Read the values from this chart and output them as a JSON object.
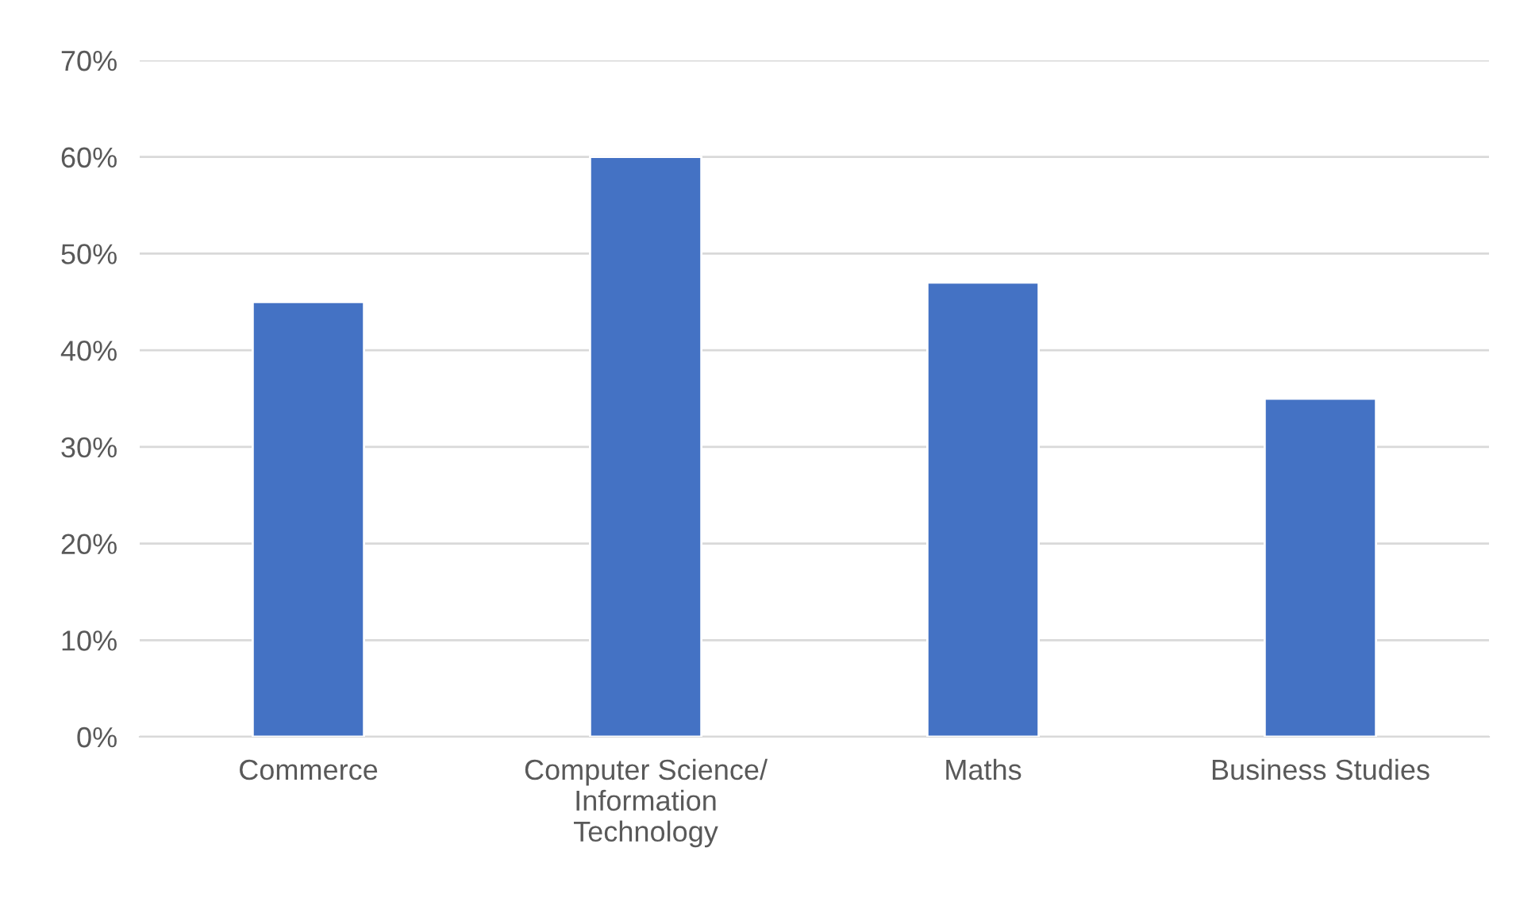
{
  "chart_data": {
    "type": "bar",
    "categories": [
      "Commerce",
      "Computer Science/\nInformation\nTechnology",
      "Maths",
      "Business Studies"
    ],
    "values": [
      45,
      60,
      47,
      35
    ],
    "color": "#4472c4",
    "ylim": [
      0,
      70
    ],
    "yticks": [
      {
        "value": 0,
        "label": "0%"
      },
      {
        "value": 10,
        "label": "10%"
      },
      {
        "value": 20,
        "label": "20%"
      },
      {
        "value": 30,
        "label": "30%"
      },
      {
        "value": 40,
        "label": "40%"
      },
      {
        "value": 50,
        "label": "50%"
      },
      {
        "value": 60,
        "label": "60%"
      },
      {
        "value": 70,
        "label": "70%"
      }
    ],
    "grid": "y",
    "legend": false
  }
}
